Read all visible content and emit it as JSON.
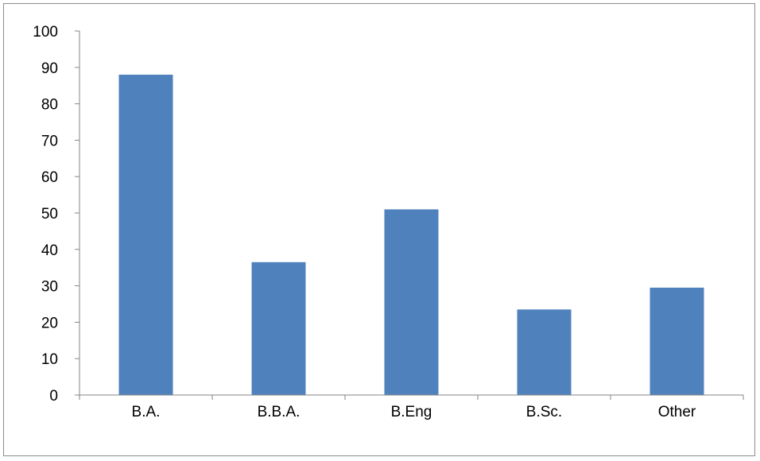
{
  "chart_data": {
    "type": "bar",
    "categories": [
      "B.A.",
      "B.B.A.",
      "B.Eng",
      "B.Sc.",
      "Other"
    ],
    "values": [
      88,
      36.5,
      51,
      23.5,
      29.5
    ],
    "title": "",
    "xlabel": "",
    "ylabel": "",
    "ylim": [
      0,
      100
    ],
    "yticks": [
      "0",
      "10",
      "20",
      "30",
      "40",
      "50",
      "60",
      "70",
      "80",
      "90",
      "100"
    ],
    "grid": false,
    "legend": "none",
    "bar_color": "#4f81bd",
    "axis_color": "#868686"
  }
}
